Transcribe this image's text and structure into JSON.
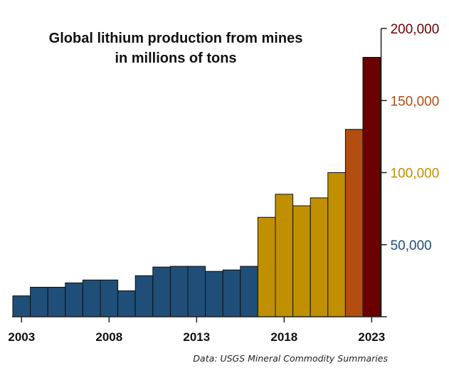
{
  "chart_data": {
    "type": "bar",
    "title_lines": [
      "Global lithium production from mines",
      "in millions of tons"
    ],
    "source": "Data: USGS Mineral Commodity Summaries",
    "years": [
      2003,
      2004,
      2005,
      2006,
      2007,
      2008,
      2009,
      2010,
      2011,
      2012,
      2013,
      2014,
      2015,
      2016,
      2017,
      2018,
      2019,
      2020,
      2021,
      2022,
      2023
    ],
    "values": [
      14500,
      20500,
      20500,
      23500,
      25500,
      25500,
      18000,
      28500,
      34500,
      35000,
      35000,
      31500,
      32500,
      35000,
      69000,
      85000,
      77000,
      82500,
      100000,
      130000,
      180000
    ],
    "color_groups": [
      "blue",
      "blue",
      "blue",
      "blue",
      "blue",
      "blue",
      "blue",
      "blue",
      "blue",
      "blue",
      "blue",
      "blue",
      "blue",
      "blue",
      "gold",
      "gold",
      "gold",
      "gold",
      "gold",
      "orange",
      "maroon"
    ],
    "colors": {
      "blue": "#1f4e79",
      "gold": "#c09000",
      "orange": "#b14e10",
      "maroon": "#6b0000",
      "axis": "#222222"
    },
    "x_tick_labels": [
      "2003",
      "2008",
      "2013",
      "2018",
      "2023"
    ],
    "x_tick_years": [
      2003,
      2008,
      2013,
      2018,
      2023
    ],
    "y_ticks": [
      {
        "value": 50000,
        "label": "50,000",
        "color": "#1f4e79"
      },
      {
        "value": 100000,
        "label": "100,000",
        "color": "#c09000"
      },
      {
        "value": 150000,
        "label": "150,000",
        "color": "#b14e10"
      },
      {
        "value": 200000,
        "label": "200,000",
        "color": "#6b0000"
      }
    ],
    "y_axis_position": "right",
    "ylim": [
      0,
      200000
    ],
    "grid": false,
    "legend": "none"
  }
}
